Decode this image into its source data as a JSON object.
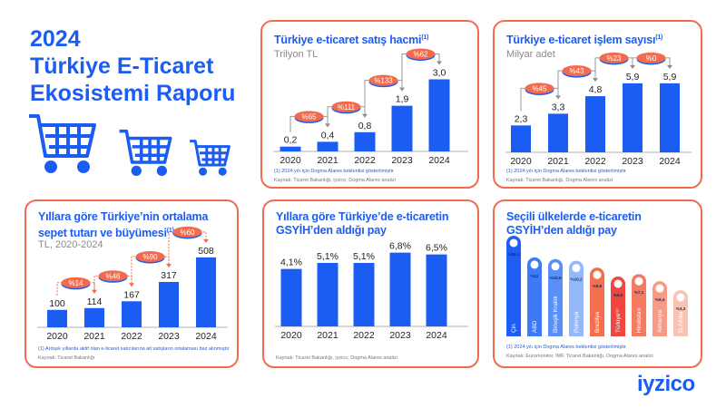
{
  "header": {
    "line1": "2024",
    "line2": "Türkiye E-Ticaret",
    "line3": "Ekosistemi Raporu"
  },
  "logo": "iyzico",
  "colors": {
    "blue": "#1b5cf3",
    "accent": "#f26b4e"
  },
  "chart_data": [
    {
      "type": "bar",
      "title": "Türkiye e-ticaret satış hacmi",
      "title_note": "(1)",
      "subtitle": "Trilyon TL",
      "categories": [
        "2020",
        "2021",
        "2022",
        "2023",
        "2024"
      ],
      "values": [
        0.2,
        0.4,
        0.8,
        1.9,
        3.0
      ],
      "value_labels": [
        "0,2",
        "0,4",
        "0,8",
        "1,9",
        "3,0"
      ],
      "growth_labels": [
        "%65",
        "%111",
        "%133",
        "%62"
      ],
      "footnote": "(1) 2024 yılı için Dogma Alares beklentisi gösterilmiştir",
      "source": "Kaynak: Ticaret Bakanlığı, iyzico, Dogma Alares analizi"
    },
    {
      "type": "bar",
      "title": "Türkiye e-ticaret işlem sayısı",
      "title_note": "(1)",
      "subtitle": "Milyar adet",
      "categories": [
        "2020",
        "2021",
        "2022",
        "2023",
        "2024"
      ],
      "values": [
        2.3,
        3.3,
        4.8,
        5.9,
        5.9
      ],
      "value_labels": [
        "2,3",
        "3,3",
        "4,8",
        "5,9",
        "5,9"
      ],
      "growth_labels": [
        "%45",
        "%43",
        "%23",
        "%0"
      ],
      "footnote": "(1) 2024 yılı için Dogma Alares beklentisi gösterilmiştir",
      "source": "Kaynak: Ticaret Bakanlığı, Dogma Alares analizi"
    },
    {
      "type": "bar",
      "title": "Yıllara göre Türkiye’nin ortalama sepet tutarı ve büyümesi",
      "title_note": "(1)",
      "subtitle": "TL, 2020-2024",
      "categories": [
        "2020",
        "2021",
        "2022",
        "2023",
        "2024"
      ],
      "values": [
        100,
        114,
        167,
        317,
        508
      ],
      "value_labels": [
        "100",
        "114",
        "167",
        "317",
        "508"
      ],
      "growth_labels": [
        "%14",
        "%46",
        "%90",
        "%60"
      ],
      "footnote": "(1) Ardışık yıllarda aktif olan e-ticaret satıcılarına ait satışların ortalaması baz alınmıştır",
      "source": "Kaynak: Ticaret Bakanlığı"
    },
    {
      "type": "bar",
      "title": "Yıllara göre Türkiye’de e-ticaretin GSYİH’den aldığı pay",
      "categories": [
        "2020",
        "2021",
        "2022",
        "2023",
        "2024"
      ],
      "values": [
        4.1,
        5.1,
        5.1,
        6.8,
        6.5
      ],
      "value_labels": [
        "4,1%",
        "5,1%",
        "5,1%",
        "6,8%",
        "6,5%"
      ],
      "source": "Kaynak: Ticaret Bakanlığı, iyzico, Dogma Alares analizi"
    },
    {
      "type": "bar",
      "title": "Seçili ülkelerde e-ticaretin GSYİH’den aldığı pay",
      "categories": [
        "Çin",
        "ABD",
        "Birleşik Krallık",
        "Polonya",
        "Brezilya",
        "Türkiye⁽¹⁾",
        "Hindistan",
        "Almanya",
        "G.Afrika"
      ],
      "values": [
        16.1,
        11,
        10.6,
        10.2,
        8.6,
        6.5,
        7.1,
        5.4,
        3.3
      ],
      "value_labels": [
        "%16,1",
        "%11",
        "%10,6",
        "%10,2",
        "%8,6",
        "%6,5",
        "%7,1",
        "%5,4",
        "%3,3"
      ],
      "colors": [
        "#1f5ef5",
        "#3e7af7",
        "#5a8ef8",
        "#93b8fb",
        "#f36f4d",
        "#f0463e",
        "#f57a62",
        "#f79b86",
        "#f9c3b4"
      ],
      "footnote": "(1) 2024 yılı için Dogma Alares beklentisi gösterilmiştir",
      "source": "Kaynak: Euromonitor, IMF, Ticaret Bakanlığı, Dogma Alares analizi"
    }
  ]
}
